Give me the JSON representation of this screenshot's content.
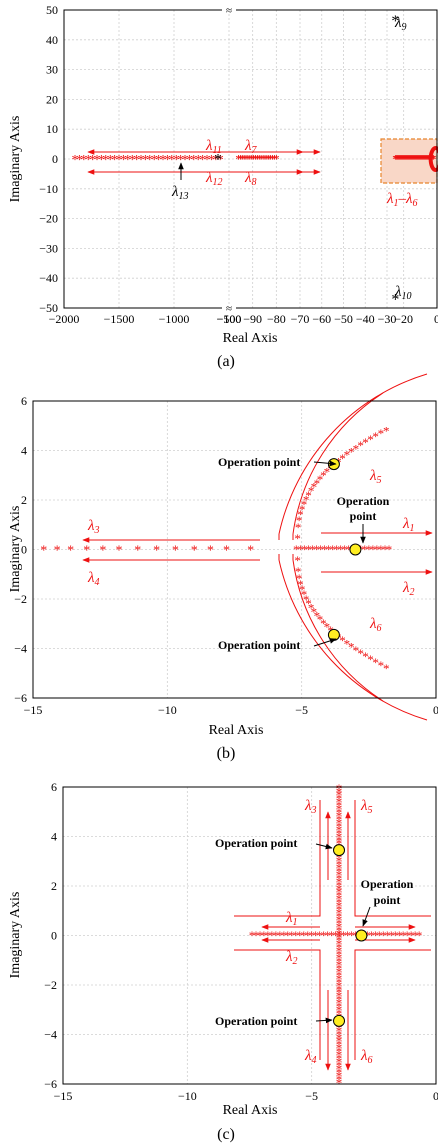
{
  "colors": {
    "locus": "#ee1111",
    "operation_point": "#ffee22",
    "highlight_fill": "#f9d7c7",
    "highlight_stroke": "#e8852d",
    "grid": "#cfcfcf",
    "black": "#000000"
  },
  "chart_data": [
    {
      "panel": "(a)",
      "type": "scatter",
      "title": "",
      "xlabel": "Real Axis",
      "ylabel": "Imaginary Axis",
      "xlim": [
        -2000,
        0
      ],
      "ylim": [
        -50,
        50
      ],
      "x_axis_break": "broken axis: -2000 to -500, then -100 to -20, then -30 to 0",
      "xticks": [
        "−2000",
        "−1500",
        "−1000",
        "−500",
        "−100",
        "−90",
        "−80",
        "−70",
        "−60",
        "−50",
        "−40",
        "−30",
        "−20",
        "0"
      ],
      "yticks": [
        "−50",
        "−40",
        "−30",
        "−20",
        "−10",
        "0",
        "10",
        "20",
        "30",
        "40",
        "50"
      ],
      "grid": true,
      "series": [
        {
          "name": "λ11 / λ12 branch",
          "x_range": [
            -1900,
            -560
          ],
          "y": 0,
          "marker": "*"
        },
        {
          "name": "λ7 / λ8 branch",
          "x_range": [
            -96,
            -80
          ],
          "y": 0,
          "marker": "*"
        },
        {
          "name": "λ1–λ6 cluster",
          "x_range": [
            -25,
            -1
          ],
          "y": 0,
          "marker": "*"
        },
        {
          "name": "λ9",
          "x": -25,
          "y": 46.5
        },
        {
          "name": "λ10",
          "x": -25,
          "y": -47
        },
        {
          "name": "λ13",
          "x": -600,
          "y": 0
        }
      ],
      "annotations": {
        "l11": "λ",
        "l11_sub": "11",
        "l12": "λ",
        "l12_sub": "12",
        "l13": "λ",
        "l13_sub": "13",
        "l7": "λ",
        "l7_sub": "7",
        "l8": "λ",
        "l8_sub": "8",
        "l9": "λ",
        "l9_sub": "9",
        "l10": "λ",
        "l10_sub": "10",
        "l1to6_a": "λ",
        "l1to6_a_sub": "1",
        "l1to6_dash": "–",
        "l1to6_b": "λ",
        "l1to6_b_sub": "6"
      },
      "label": "(a)"
    },
    {
      "panel": "(b)",
      "type": "scatter",
      "title": "",
      "xlabel": "Real Axis",
      "ylabel": "Imaginary Axis",
      "xlim": [
        -15,
        0
      ],
      "ylim": [
        -6,
        6
      ],
      "xticks": [
        "−15",
        "−10",
        "−5",
        "0"
      ],
      "yticks": [
        "−6",
        "−4",
        "−2",
        "0",
        "2",
        "4",
        "6"
      ],
      "grid": true,
      "series": [
        {
          "name": "λ3 / λ4 branch",
          "x": [
            -14.6,
            -14.1,
            -13.6,
            -13.0,
            -12.4,
            -11.8,
            -11.1,
            -10.4,
            -9.7,
            -9.0,
            -8.4,
            -7.8,
            -6.9
          ],
          "y": 0
        },
        {
          "name": "λ1 / λ2 branch",
          "x_range": [
            -5.2,
            -1.7
          ],
          "y": 0
        },
        {
          "name": "λ5 branch",
          "x_range": [
            -5.2,
            -1.8
          ],
          "y_range": [
            0.5,
            4.8
          ]
        },
        {
          "name": "λ6 branch",
          "x_range": [
            -5.2,
            -1.8
          ],
          "y_range": [
            -0.5,
            -4.8
          ]
        }
      ],
      "operation_points": [
        {
          "x": -3.8,
          "y": 3.45
        },
        {
          "x": -3.0,
          "y": 0
        },
        {
          "x": -3.8,
          "y": -3.45
        }
      ],
      "annotations": {
        "op_top": "Operation point",
        "op_mid_1": "Operation",
        "op_mid_2": "point",
        "op_bot": "Operation point",
        "l1": "λ",
        "l1_sub": "1",
        "l2": "λ",
        "l2_sub": "2",
        "l3": "λ",
        "l3_sub": "3",
        "l4": "λ",
        "l4_sub": "4",
        "l5": "λ",
        "l5_sub": "5",
        "l6": "λ",
        "l6_sub": "6"
      },
      "label": "(b)"
    },
    {
      "panel": "(c)",
      "type": "scatter",
      "title": "",
      "xlabel": "Real Axis",
      "ylabel": "Imaginary Axis",
      "xlim": [
        -15,
        0
      ],
      "ylim": [
        -6,
        6
      ],
      "xticks": [
        "−15",
        "−10",
        "−5",
        "0"
      ],
      "yticks": [
        "−6",
        "−4",
        "−2",
        "0",
        "2",
        "4",
        "6"
      ],
      "grid": true,
      "series": [
        {
          "name": "horizontal branch",
          "x_range": [
            -7.5,
            -0.6
          ],
          "y": 0
        },
        {
          "name": "vertical branch",
          "x": -3.9,
          "y_range": [
            -6,
            6
          ]
        }
      ],
      "operation_points": [
        {
          "x": -3.9,
          "y": 3.45
        },
        {
          "x": -3.0,
          "y": 0
        },
        {
          "x": -3.9,
          "y": -3.45
        }
      ],
      "annotations": {
        "op_top": "Operation point",
        "op_mid_1": "Operation",
        "op_mid_2": "point",
        "op_bot": "Operation point",
        "l1": "λ",
        "l1_sub": "1",
        "l2": "λ",
        "l2_sub": "2",
        "l3": "λ",
        "l3_sub": "3",
        "l4": "λ",
        "l4_sub": "4",
        "l5": "λ",
        "l5_sub": "5",
        "l6": "λ",
        "l6_sub": "6"
      },
      "label": "(c)"
    }
  ]
}
